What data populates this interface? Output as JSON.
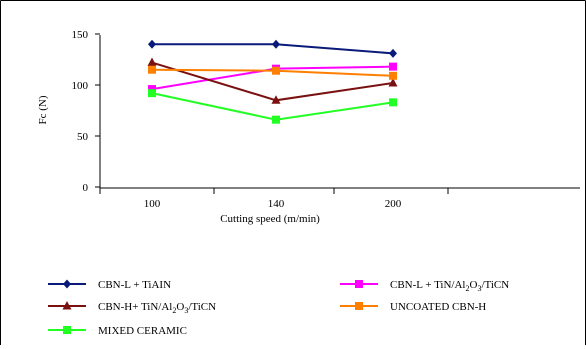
{
  "chart_data": {
    "type": "line",
    "title": "",
    "xlabel": "Cutting speed (m/min)",
    "ylabel": "Fc (N)",
    "categories": [
      "100",
      "140",
      "200"
    ],
    "yticks": [
      "0",
      "50",
      "100",
      "150"
    ],
    "ylim": [
      0,
      150
    ],
    "grid": false,
    "legend_position": "bottom",
    "series": [
      {
        "name_base": "CBN-L + TiAIN",
        "name_sub": "",
        "name_tail": "",
        "name_sub2": "",
        "name_end": "",
        "color": "#0a1a78",
        "marker": "diamond",
        "values": [
          140,
          140,
          131
        ]
      },
      {
        "name_base": "CBN-L + TiN/Al",
        "name_sub": "2",
        "name_tail": "O",
        "name_sub2": "3",
        "name_end": "/TiCN",
        "color": "#ff00ff",
        "marker": "square",
        "values": [
          96,
          116,
          118
        ]
      },
      {
        "name_base": "CBN-H+ TiN/Al",
        "name_sub": "2",
        "name_tail": "O",
        "name_sub2": "3",
        "name_end": "/TiCN",
        "color": "#7a1010",
        "marker": "triangle",
        "values": [
          122,
          85,
          102
        ]
      },
      {
        "name_base": "UNCOATED CBN-H",
        "name_sub": "",
        "name_tail": "",
        "name_sub2": "",
        "name_end": "",
        "color": "#ff7f00",
        "marker": "square",
        "values": [
          115,
          114,
          109
        ]
      },
      {
        "name_base": "MIXED CERAMIC",
        "name_sub": "",
        "name_tail": "",
        "name_sub2": "",
        "name_end": "",
        "color": "#22ff22",
        "marker": "square",
        "values": [
          92,
          66,
          83
        ]
      }
    ]
  }
}
